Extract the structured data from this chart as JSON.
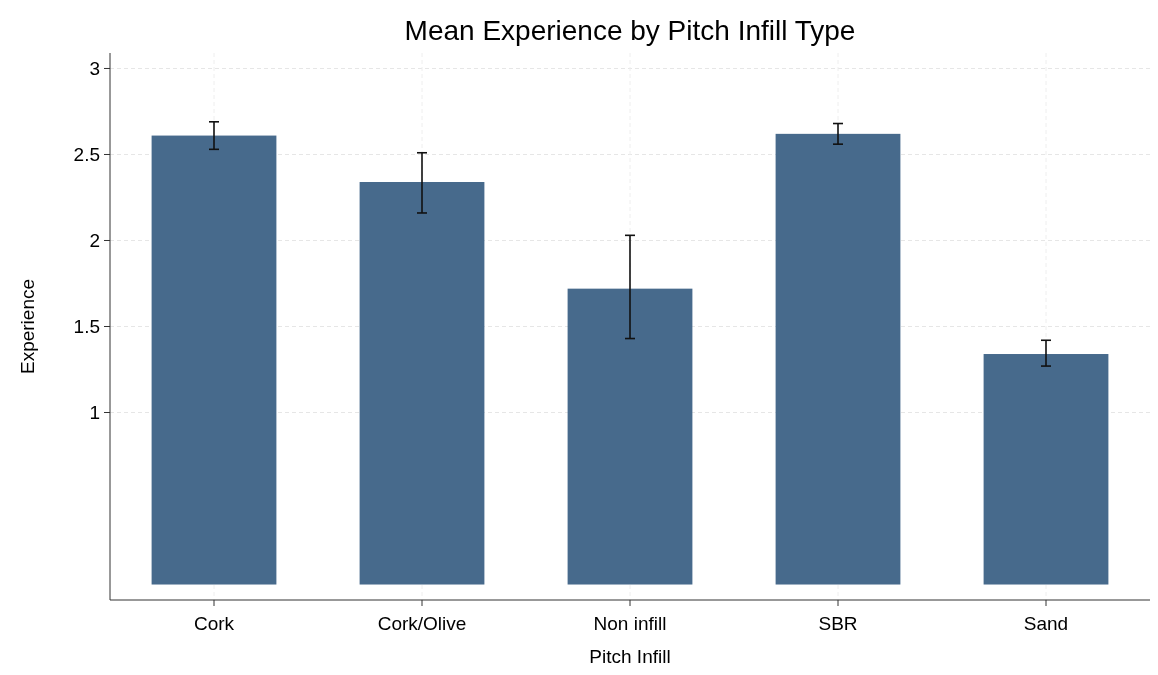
{
  "chart_data": {
    "type": "bar",
    "title": "Mean Experience by Pitch Infill Type",
    "xlabel": "Pitch Infill",
    "ylabel": "Experience",
    "categories": [
      "Cork",
      "Cork/Olive",
      "Non infill",
      "SBR",
      "Sand"
    ],
    "values": [
      2.61,
      2.34,
      1.72,
      2.62,
      1.34
    ],
    "errors": [
      [
        2.53,
        2.69
      ],
      [
        2.16,
        2.51
      ],
      [
        1.43,
        2.03
      ],
      [
        2.56,
        2.68
      ],
      [
        1.27,
        1.42
      ]
    ],
    "color": "#476a8c",
    "ylim": [
      -0.09,
      3.09
    ],
    "yticks": [
      1,
      1.5,
      2,
      2.5,
      3
    ],
    "grid": true
  }
}
